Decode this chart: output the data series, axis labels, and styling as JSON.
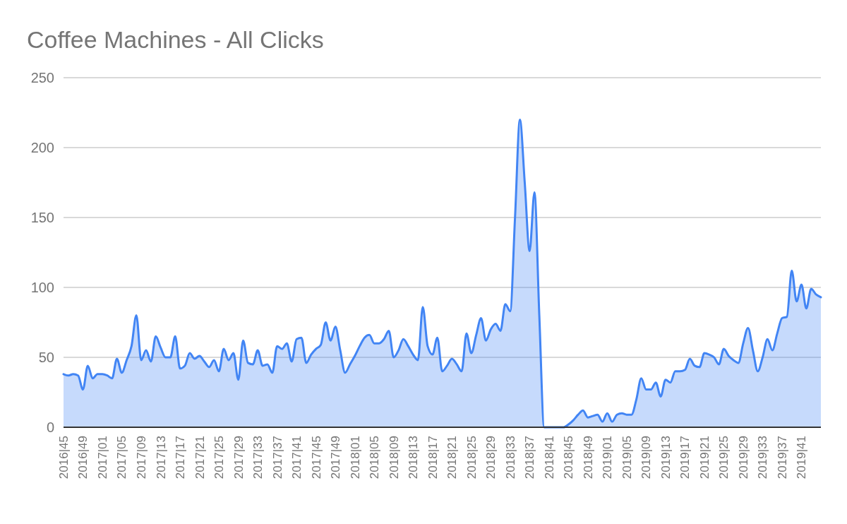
{
  "chart_data": {
    "type": "area",
    "title": "Coffee Machines - All Clicks",
    "categories": [
      "2016|45",
      null,
      null,
      null,
      "2016|49",
      null,
      null,
      null,
      "2017|01",
      null,
      null,
      null,
      "2017|05",
      null,
      null,
      null,
      "2017|09",
      null,
      null,
      null,
      "2017|13",
      null,
      null,
      null,
      "2017|17",
      null,
      null,
      null,
      "2017|21",
      null,
      null,
      null,
      "2017|25",
      null,
      null,
      null,
      "2017|29",
      null,
      null,
      null,
      "2017|33",
      null,
      null,
      null,
      "2017|37",
      null,
      null,
      null,
      "2017|41",
      null,
      null,
      null,
      "2017|45",
      null,
      null,
      null,
      "2017|49",
      null,
      null,
      null,
      "2018|01",
      null,
      null,
      null,
      "2018|05",
      null,
      null,
      null,
      "2018|09",
      null,
      null,
      null,
      "2018|13",
      null,
      null,
      null,
      "2018|17",
      null,
      null,
      null,
      "2018|21",
      null,
      null,
      null,
      "2018|25",
      null,
      null,
      null,
      "2018|29",
      null,
      null,
      null,
      "2018|33",
      null,
      null,
      null,
      "2018|37",
      null,
      null,
      null,
      "2018|41",
      null,
      null,
      null,
      "2018|45",
      null,
      null,
      null,
      "2018|49",
      null,
      null,
      null,
      "2019|01",
      null,
      null,
      null,
      "2019|05",
      null,
      null,
      null,
      "2019|09",
      null,
      null,
      null,
      "2019|13",
      null,
      null,
      null,
      "2019|17",
      null,
      null,
      null,
      "2019|21",
      null,
      null,
      null,
      "2019|25",
      null,
      null,
      null,
      "2019|29",
      null,
      null,
      null,
      "2019|33",
      null,
      null,
      null,
      "2019|37",
      null,
      null,
      null,
      "2019|41",
      null,
      null,
      null,
      null
    ],
    "series": [
      {
        "color": "#4285f4",
        "values": [
          38,
          37,
          38,
          37,
          27,
          44,
          35,
          38,
          38,
          37,
          35,
          49,
          39,
          48,
          58,
          80,
          48,
          55,
          47,
          65,
          57,
          50,
          50,
          65,
          42,
          44,
          53,
          49,
          51,
          47,
          43,
          48,
          40,
          56,
          48,
          53,
          34,
          62,
          46,
          45,
          55,
          44,
          45,
          39,
          58,
          56,
          60,
          47,
          63,
          64,
          46,
          52,
          56,
          59,
          75,
          62,
          72,
          55,
          39,
          45,
          51,
          58,
          64,
          66,
          60,
          60,
          63,
          69,
          50,
          55,
          63,
          58,
          52,
          48,
          86,
          58,
          52,
          64,
          40,
          44,
          49,
          45,
          40,
          67,
          53,
          66,
          78,
          62,
          70,
          74,
          69,
          88,
          83,
          150,
          220,
          175,
          126,
          168,
          80,
          0,
          0,
          0,
          0,
          0,
          2,
          5,
          9,
          12,
          7,
          8,
          9,
          4,
          10,
          4,
          9,
          10,
          9,
          9,
          20,
          35,
          27,
          27,
          32,
          22,
          34,
          32,
          40,
          40,
          41,
          49,
          44,
          43,
          53,
          52,
          50,
          45,
          56,
          51,
          48,
          46,
          60,
          71,
          55,
          40,
          50,
          63,
          55,
          67,
          78,
          79,
          112,
          90,
          102,
          85,
          99,
          95,
          93
        ]
      }
    ],
    "ylim": [
      0,
      250
    ],
    "yticks": [
      0,
      50,
      100,
      150,
      200,
      250
    ],
    "grid": "y"
  }
}
